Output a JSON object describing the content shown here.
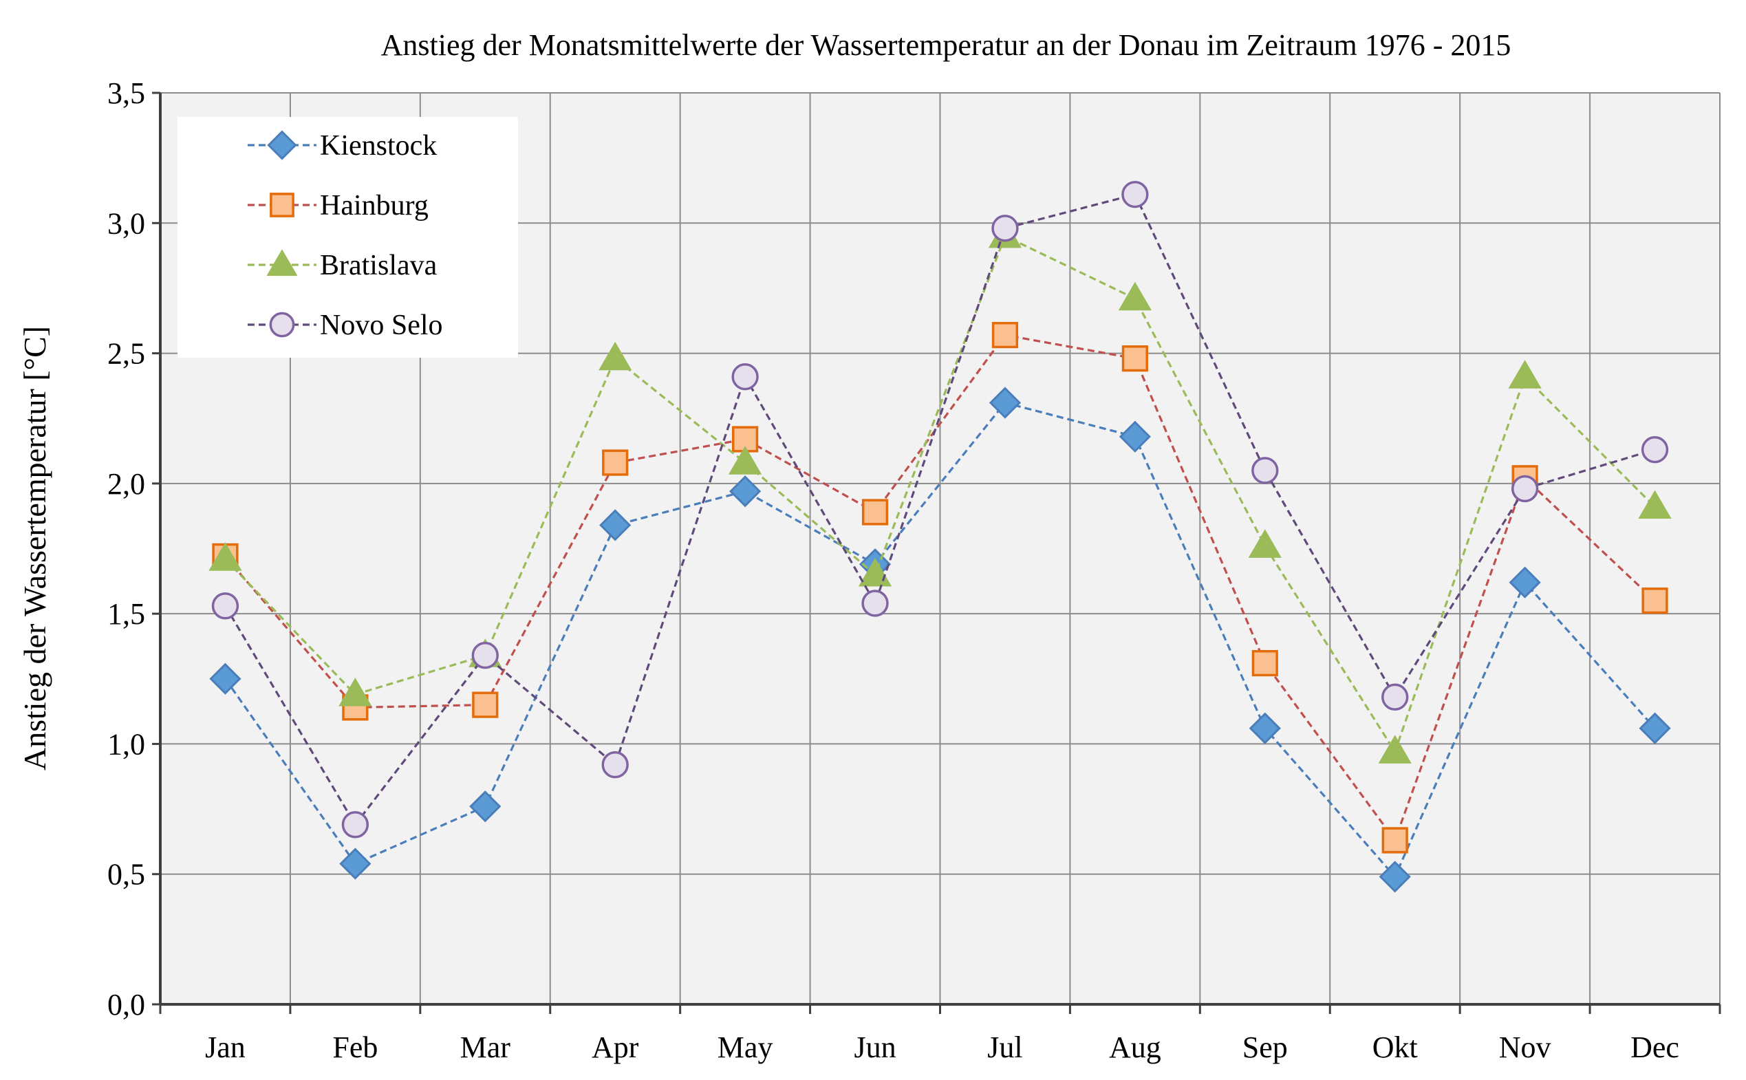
{
  "chart_data": {
    "type": "line",
    "title": "Anstieg der Monatsmittelwerte der Wassertemperatur an der Donau  im Zeitraum 1976 - 2015",
    "xlabel": "",
    "ylabel": "Anstieg der Wassertemperatur  [°C]",
    "categories": [
      "Jan",
      "Feb",
      "Mar",
      "Apr",
      "May",
      "Jun",
      "Jul",
      "Aug",
      "Sep",
      "Okt",
      "Nov",
      "Dec"
    ],
    "ylim": [
      0,
      3.5
    ],
    "yticks": [
      "0,0",
      "0,5",
      "1,0",
      "1,5",
      "2,0",
      "2,5",
      "3,0",
      "3,5"
    ],
    "grid": true,
    "legend_position": "top-left",
    "series": [
      {
        "name": "Kienstock",
        "marker": "diamond",
        "color": "#4a7ebb",
        "fill": "#5b9bd5",
        "values": [
          1.25,
          0.54,
          0.76,
          1.84,
          1.97,
          1.69,
          2.31,
          2.18,
          1.06,
          0.49,
          1.62,
          1.06
        ]
      },
      {
        "name": "Hainburg",
        "marker": "square",
        "color": "#c0504d",
        "fill": "#fac090",
        "stroke": "#e46c0a",
        "values": [
          1.72,
          1.14,
          1.15,
          2.08,
          2.17,
          1.89,
          2.57,
          2.48,
          1.31,
          0.63,
          2.02,
          1.55
        ]
      },
      {
        "name": "Bratislava",
        "marker": "triangle",
        "color": "#9bbb59",
        "fill": "#9bbb59",
        "values": [
          1.71,
          1.19,
          1.34,
          2.48,
          2.08,
          1.65,
          2.95,
          2.71,
          1.76,
          0.97,
          2.41,
          1.91
        ]
      },
      {
        "name": "Novo Selo",
        "marker": "circle",
        "color": "#604a7b",
        "fill": "#e6e0ec",
        "stroke": "#8064a2",
        "values": [
          1.53,
          0.69,
          1.34,
          0.92,
          2.41,
          1.54,
          2.98,
          3.11,
          2.05,
          1.18,
          1.98,
          2.13
        ]
      }
    ]
  }
}
